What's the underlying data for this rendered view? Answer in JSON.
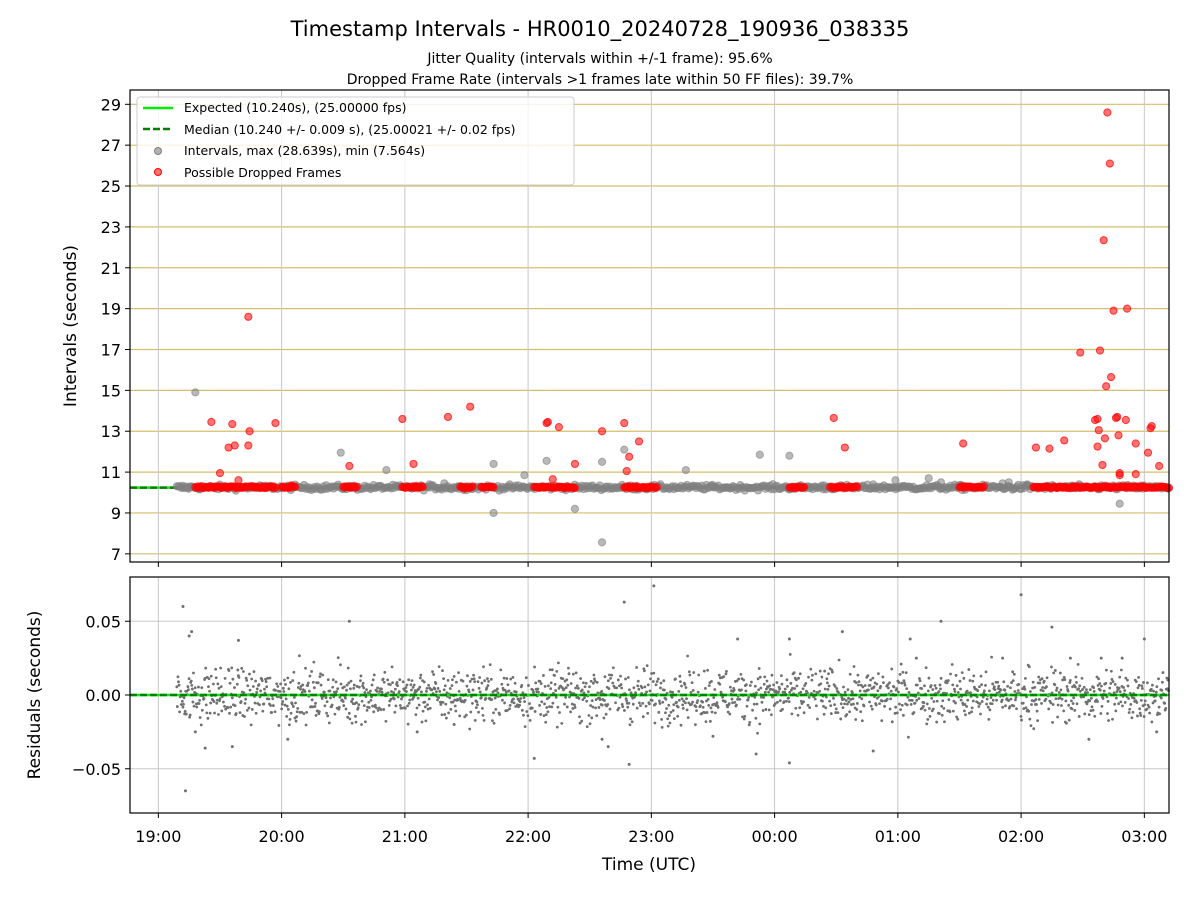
{
  "figure": {
    "title": "Timestamp Intervals - HR0010_20240728_190936_038335",
    "subtitle_1": "Jitter Quality (intervals within +/-1 frame): 95.6%",
    "subtitle_2": "Dropped Frame Rate (intervals >1 frames late within 50 FF files): 39.7%"
  },
  "chart_data": [
    {
      "type": "scatter",
      "panel": "intervals",
      "ylabel": "Intervals (seconds)",
      "xlabel": "",
      "ylim": [
        6.6,
        29.7
      ],
      "yticks": [
        7,
        9,
        11,
        13,
        15,
        17,
        19,
        21,
        23,
        25,
        27,
        29
      ],
      "xlim_hours": [
        18.77,
        27.2
      ],
      "grid": true,
      "legend_position": "upper-left",
      "legend": [
        "Expected (10.240s), (25.00000 fps)",
        "Median (10.240 +/- 0.009 s), (25.00021 +/- 0.02 fps)",
        "Intervals, max (28.639s), min (7.564s)",
        "Possible Dropped Frames"
      ],
      "expected_line": 10.24,
      "median_line": 10.24,
      "colors": {
        "expected": "#00ee00",
        "median": "#008000",
        "intervals": "#808080",
        "dropped": "#ff0000",
        "hgrid": "#d4bf6a"
      },
      "intervals": [
        [
          19.2,
          10.25
        ],
        [
          19.3,
          14.9
        ],
        [
          19.25,
          10.26
        ],
        [
          20.12,
          10.3
        ],
        [
          20.48,
          11.95
        ],
        [
          20.85,
          11.1
        ],
        [
          21.2,
          10.4
        ],
        [
          21.32,
          10.45
        ],
        [
          21.43,
          10.3
        ],
        [
          21.72,
          11.4
        ],
        [
          21.72,
          9.0
        ],
        [
          21.97,
          10.85
        ],
        [
          22.15,
          11.55
        ],
        [
          22.38,
          9.2
        ],
        [
          22.6,
          11.5
        ],
        [
          22.6,
          7.56
        ],
        [
          22.78,
          12.1
        ],
        [
          23.28,
          11.1
        ],
        [
          23.5,
          10.3
        ],
        [
          23.88,
          11.85
        ],
        [
          24.12,
          11.8
        ],
        [
          24.4,
          10.35
        ],
        [
          24.8,
          10.4
        ],
        [
          24.98,
          10.6
        ],
        [
          25.25,
          10.7
        ],
        [
          25.35,
          10.5
        ],
        [
          25.5,
          10.35
        ],
        [
          25.72,
          10.35
        ],
        [
          25.85,
          10.45
        ],
        [
          25.9,
          10.5
        ],
        [
          26.05,
          10.4
        ],
        [
          26.35,
          10.3
        ],
        [
          26.65,
          10.35
        ],
        [
          26.8,
          9.45
        ]
      ],
      "intervals_band": {
        "from": 19.15,
        "to": 27.2,
        "mean": 10.25,
        "spread": 0.06
      },
      "dropped_frames": [
        [
          19.43,
          13.45
        ],
        [
          19.5,
          10.95
        ],
        [
          19.57,
          12.2
        ],
        [
          19.6,
          13.35
        ],
        [
          19.62,
          12.3
        ],
        [
          19.65,
          10.6
        ],
        [
          19.73,
          18.6
        ],
        [
          19.73,
          12.3
        ],
        [
          19.74,
          13.0
        ],
        [
          19.95,
          13.4
        ],
        [
          20.08,
          10.35
        ],
        [
          20.55,
          11.3
        ],
        [
          20.98,
          13.6
        ],
        [
          21.07,
          11.4
        ],
        [
          21.35,
          13.7
        ],
        [
          21.48,
          10.2
        ],
        [
          21.53,
          14.2
        ],
        [
          22.15,
          13.4
        ],
        [
          22.16,
          13.45
        ],
        [
          22.2,
          10.65
        ],
        [
          22.25,
          13.2
        ],
        [
          22.38,
          11.4
        ],
        [
          22.6,
          13.0
        ],
        [
          22.78,
          13.4
        ],
        [
          22.8,
          11.05
        ],
        [
          22.82,
          11.75
        ],
        [
          22.9,
          12.5
        ],
        [
          24.48,
          13.65
        ],
        [
          24.57,
          12.2
        ],
        [
          25.53,
          12.4
        ],
        [
          26.12,
          12.2
        ],
        [
          26.23,
          12.15
        ],
        [
          26.35,
          12.55
        ],
        [
          26.48,
          16.85
        ],
        [
          26.6,
          13.55
        ],
        [
          26.62,
          13.6
        ],
        [
          26.62,
          12.25
        ],
        [
          26.63,
          13.05
        ],
        [
          26.64,
          16.95
        ],
        [
          26.66,
          11.35
        ],
        [
          26.67,
          22.35
        ],
        [
          26.68,
          12.65
        ],
        [
          26.69,
          15.2
        ],
        [
          26.7,
          28.6
        ],
        [
          26.72,
          26.1
        ],
        [
          26.73,
          15.65
        ],
        [
          26.75,
          18.9
        ],
        [
          26.77,
          13.65
        ],
        [
          26.78,
          13.7
        ],
        [
          26.79,
          12.8
        ],
        [
          26.8,
          10.85
        ],
        [
          26.8,
          10.95
        ],
        [
          26.85,
          13.55
        ],
        [
          26.86,
          19.0
        ],
        [
          26.93,
          12.4
        ],
        [
          26.93,
          10.9
        ],
        [
          27.03,
          11.95
        ],
        [
          27.05,
          13.15
        ],
        [
          27.06,
          13.25
        ],
        [
          27.12,
          11.3
        ]
      ],
      "dropped_clusters": [
        [
          19.3,
          19.95
        ],
        [
          20.0,
          20.12
        ],
        [
          20.5,
          20.62
        ],
        [
          20.98,
          21.15
        ],
        [
          21.45,
          21.55
        ],
        [
          21.62,
          21.72
        ],
        [
          22.05,
          22.38
        ],
        [
          22.78,
          23.05
        ],
        [
          24.12,
          24.25
        ],
        [
          24.45,
          24.68
        ],
        [
          25.5,
          25.7
        ],
        [
          26.1,
          27.2
        ]
      ]
    },
    {
      "type": "scatter",
      "panel": "residuals",
      "ylabel": "Residuals (seconds)",
      "xlabel": "Time (UTC)",
      "ylim": [
        -0.08,
        0.08
      ],
      "yticks": [
        -0.05,
        0.0,
        0.05
      ],
      "ytick_labels": [
        "−0.05",
        "0.00",
        "0.05"
      ],
      "xticks_hours": [
        19,
        20,
        21,
        22,
        23,
        24,
        25,
        26,
        27
      ],
      "xtick_labels": [
        "19:00",
        "20:00",
        "21:00",
        "22:00",
        "23:00",
        "00:00",
        "01:00",
        "02:00",
        "03:00"
      ],
      "grid": true,
      "zero_line": 0,
      "residual_band": {
        "from": 19.15,
        "to": 27.2,
        "spread": 0.009
      },
      "outliers": [
        [
          19.2,
          0.06
        ],
        [
          19.22,
          -0.065
        ],
        [
          19.25,
          0.04
        ],
        [
          19.27,
          0.043
        ],
        [
          19.3,
          -0.025
        ],
        [
          19.38,
          -0.036
        ],
        [
          19.6,
          -0.035
        ],
        [
          19.65,
          0.037
        ],
        [
          20.05,
          -0.03
        ],
        [
          20.55,
          0.05
        ],
        [
          21.1,
          -0.025
        ],
        [
          21.4,
          -0.02
        ],
        [
          22.05,
          -0.043
        ],
        [
          22.6,
          -0.03
        ],
        [
          22.65,
          -0.035
        ],
        [
          22.78,
          0.063
        ],
        [
          22.82,
          -0.047
        ],
        [
          23.02,
          0.074
        ],
        [
          23.5,
          -0.028
        ],
        [
          23.7,
          0.038
        ],
        [
          23.85,
          -0.04
        ],
        [
          24.12,
          0.038
        ],
        [
          24.12,
          -0.046
        ],
        [
          24.55,
          0.043
        ],
        [
          24.8,
          -0.038
        ],
        [
          25.1,
          0.038
        ],
        [
          25.15,
          0.025
        ],
        [
          25.35,
          0.05
        ],
        [
          25.85,
          0.025
        ],
        [
          26.0,
          0.068
        ],
        [
          26.25,
          0.046
        ],
        [
          26.4,
          0.025
        ],
        [
          26.55,
          -0.03
        ],
        [
          26.65,
          0.025
        ],
        [
          26.82,
          0.025
        ],
        [
          27.0,
          0.038
        ],
        [
          27.1,
          -0.025
        ]
      ]
    }
  ]
}
